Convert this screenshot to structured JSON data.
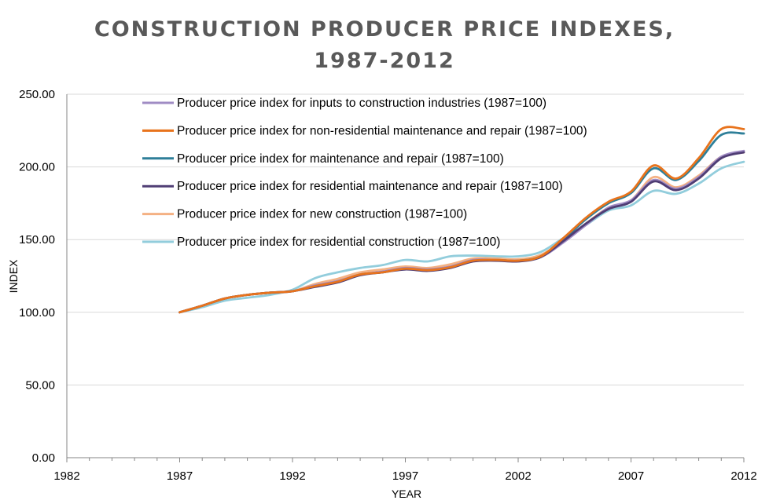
{
  "chart_data": {
    "type": "line",
    "title_line1": "CONSTRUCTION PRODUCER PRICE INDEXES,",
    "title_line2": "1987-2012",
    "xlabel": "YEAR",
    "ylabel": "INDEX",
    "xlim": [
      1982,
      2012
    ],
    "ylim": [
      0,
      250
    ],
    "x_ticks": [
      1982,
      1987,
      1992,
      1997,
      2002,
      2007,
      2012
    ],
    "y_ticks": [
      "0.00",
      "50.00",
      "100.00",
      "150.00",
      "200.00",
      "250.00"
    ],
    "grid": "horizontal",
    "legend_position": "top-left inside plot",
    "x": [
      1987,
      1988,
      1989,
      1990,
      1991,
      1992,
      1993,
      1994,
      1995,
      1996,
      1997,
      1998,
      1999,
      2000,
      2001,
      2002,
      2003,
      2004,
      2005,
      2006,
      2007,
      2008,
      2009,
      2010,
      2011,
      2012
    ],
    "series": [
      {
        "name": "Producer price index for inputs to construction industries (1987=100)",
        "color": "#a08cc4",
        "values": [
          100,
          104.5,
          109.5,
          112,
          113.5,
          114.5,
          118.5,
          121.5,
          126,
          128,
          130.5,
          129.5,
          131.5,
          136,
          136,
          135.5,
          138,
          148,
          160,
          172,
          177,
          191,
          185,
          193,
          207,
          211
        ]
      },
      {
        "name": "Producer price index for non-residential maintenance and repair (1987=100)",
        "color": "#e8731c",
        "values": [
          100,
          104.5,
          109.5,
          112,
          113.5,
          114.5,
          118,
          121,
          126,
          127.5,
          130,
          129,
          131,
          135.5,
          136,
          135.5,
          138.5,
          151,
          165,
          176,
          183,
          201,
          192,
          206,
          226,
          226
        ]
      },
      {
        "name": "Producer price index for maintenance and repair (1987=100)",
        "color": "#2e7f99",
        "values": [
          100,
          104.5,
          109.5,
          112,
          113.5,
          114.5,
          118,
          121,
          126,
          127.5,
          130,
          129,
          131,
          135.5,
          136,
          135.5,
          138.5,
          150,
          164,
          175,
          182,
          199,
          191,
          204,
          222,
          223
        ]
      },
      {
        "name": "Producer price index for residential maintenance and repair (1987=100)",
        "color": "#4f3d74",
        "values": [
          100,
          104.5,
          109.5,
          112,
          113.5,
          114.5,
          117.5,
          120.5,
          125.5,
          127.5,
          129.5,
          128.5,
          130.5,
          135,
          135.5,
          135,
          138,
          149,
          161,
          171,
          176,
          190,
          184,
          192,
          206,
          210
        ]
      },
      {
        "name": "Producer price index for new construction (1987=100)",
        "color": "#f4b183",
        "values": [
          100,
          104.5,
          109.5,
          112,
          113.5,
          114.5,
          119.5,
          123,
          127.5,
          129.5,
          131.5,
          130.5,
          133,
          137,
          137,
          136.5,
          139.5,
          149,
          161,
          172,
          177,
          193,
          186,
          194,
          207,
          210
        ]
      },
      {
        "name": "Producer price index for residential construction (1987=100)",
        "color": "#92cddc",
        "values": [
          100,
          103.5,
          108,
          110,
          112,
          115.5,
          123.5,
          127.5,
          130.5,
          132.5,
          136,
          135,
          138.5,
          139,
          138.5,
          138.5,
          141.5,
          151,
          160,
          170,
          173.5,
          183.5,
          181.5,
          188.5,
          199,
          203.5
        ]
      }
    ]
  }
}
